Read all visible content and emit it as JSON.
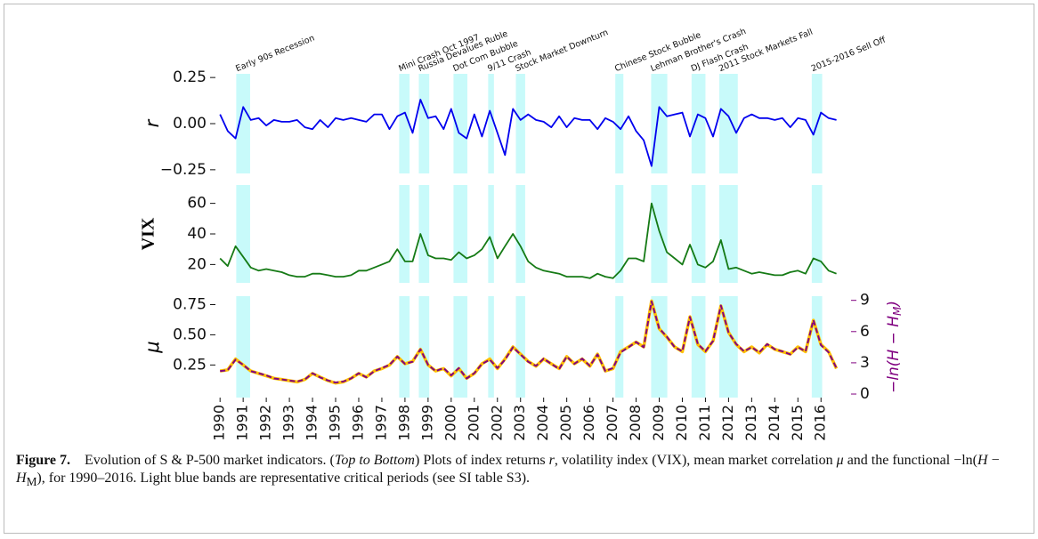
{
  "chart_data": {
    "type": "line",
    "xlim": [
      1989.8,
      2017.3
    ],
    "xticks": [
      1990,
      1991,
      1992,
      1993,
      1994,
      1995,
      1996,
      1997,
      1998,
      1999,
      2000,
      2001,
      2002,
      2003,
      2004,
      2005,
      2006,
      2007,
      2008,
      2009,
      2010,
      2011,
      2012,
      2013,
      2014,
      2015,
      2016
    ],
    "band_color": "#c8fafa",
    "bands": [
      {
        "start": 1990.7,
        "end": 1991.3,
        "label": "Early 90s Recession"
      },
      {
        "start": 1997.75,
        "end": 1998.2,
        "label": "Mini Crash Oct 1997"
      },
      {
        "start": 1998.6,
        "end": 1999.05,
        "label": "Russia Devalues Ruble"
      },
      {
        "start": 2000.1,
        "end": 2000.7,
        "label": "Dot Com Bubble"
      },
      {
        "start": 2001.6,
        "end": 2001.85,
        "label": "9/11 Crash"
      },
      {
        "start": 2002.8,
        "end": 2003.2,
        "label": "Stock Market Downturn"
      },
      {
        "start": 2007.1,
        "end": 2007.45,
        "label": "Chinese Stock Bubble"
      },
      {
        "start": 2008.65,
        "end": 2009.35,
        "label": "Lehman Brother's Crash"
      },
      {
        "start": 2010.4,
        "end": 2011.0,
        "label": "DJ Flash Crash"
      },
      {
        "start": 2011.6,
        "end": 2012.4,
        "label": "2011 Stock Markets Fall"
      },
      {
        "start": 2015.6,
        "end": 2016.05,
        "label": "2015-2016 Sell Off"
      }
    ],
    "x": [
      1990,
      1990.33,
      1990.67,
      1991,
      1991.33,
      1991.67,
      1992,
      1992.33,
      1992.67,
      1993,
      1993.33,
      1993.67,
      1994,
      1994.33,
      1994.67,
      1995,
      1995.33,
      1995.67,
      1996,
      1996.33,
      1996.67,
      1997,
      1997.33,
      1997.67,
      1998,
      1998.33,
      1998.67,
      1999,
      1999.33,
      1999.67,
      2000,
      2000.33,
      2000.67,
      2001,
      2001.33,
      2001.67,
      2002,
      2002.33,
      2002.67,
      2003,
      2003.33,
      2003.67,
      2004,
      2004.33,
      2004.67,
      2005,
      2005.33,
      2005.67,
      2006,
      2006.33,
      2006.67,
      2007,
      2007.33,
      2007.67,
      2008,
      2008.33,
      2008.67,
      2009,
      2009.33,
      2009.67,
      2010,
      2010.33,
      2010.67,
      2011,
      2011.33,
      2011.67,
      2012,
      2012.33,
      2012.67,
      2013,
      2013.33,
      2013.67,
      2014,
      2014.33,
      2014.67,
      2015,
      2015.33,
      2015.67,
      2016,
      2016.33,
      2016.67
    ],
    "panels": [
      {
        "ylabel": "r",
        "ylim": [
          -0.27,
          0.27
        ],
        "yticks": [
          {
            "value": -0.25,
            "label": "−0.25"
          },
          {
            "value": 0,
            "label": "0.00"
          },
          0.25
        ],
        "series": [
          {
            "name": "r",
            "color": "#0000ee",
            "values": [
              0.05,
              -0.04,
              -0.08,
              0.09,
              0.02,
              0.03,
              -0.01,
              0.02,
              0.01,
              0.01,
              0.02,
              -0.02,
              -0.03,
              0.02,
              -0.02,
              0.03,
              0.02,
              0.03,
              0.02,
              0.01,
              0.05,
              0.05,
              -0.03,
              0.04,
              0.06,
              -0.05,
              0.13,
              0.03,
              0.04,
              -0.03,
              0.08,
              -0.05,
              -0.08,
              0.05,
              -0.07,
              0.07,
              -0.05,
              -0.17,
              0.08,
              0.02,
              0.05,
              0.02,
              0.01,
              -0.02,
              0.04,
              -0.02,
              0.03,
              0.02,
              0.02,
              -0.03,
              0.03,
              0.01,
              -0.03,
              0.04,
              -0.04,
              -0.09,
              -0.23,
              0.09,
              0.04,
              0.05,
              0.06,
              -0.07,
              0.05,
              0.03,
              -0.07,
              0.08,
              0.04,
              -0.05,
              0.03,
              0.05,
              0.03,
              0.03,
              0.02,
              0.03,
              -0.02,
              0.03,
              0.02,
              -0.06,
              0.06,
              0.03,
              0.02
            ]
          }
        ]
      },
      {
        "ylabel": "VIX",
        "ylim": [
          8,
          72
        ],
        "yticks": [
          20,
          40,
          60
        ],
        "series": [
          {
            "name": "VIX",
            "color": "#157a15",
            "values": [
              24,
              19,
              32,
              25,
              18,
              16,
              17,
              16,
              15,
              13,
              12,
              12,
              14,
              14,
              13,
              12,
              12,
              13,
              16,
              16,
              18,
              20,
              22,
              30,
              22,
              22,
              40,
              26,
              24,
              24,
              23,
              28,
              24,
              26,
              30,
              38,
              24,
              32,
              40,
              32,
              22,
              18,
              16,
              15,
              14,
              12,
              12,
              12,
              11,
              14,
              12,
              11,
              16,
              24,
              24,
              22,
              60,
              42,
              28,
              24,
              20,
              33,
              20,
              18,
              22,
              36,
              17,
              18,
              16,
              14,
              15,
              14,
              13,
              13,
              15,
              16,
              14,
              24,
              22,
              16,
              14
            ]
          }
        ]
      },
      {
        "ylabel": "μ",
        "ylim": [
          -0.02,
          0.82
        ],
        "yticks": [
          0.25,
          {
            "value": 0.5,
            "label": "0.50"
          },
          0.75
        ],
        "y2label": [
          "−ln(H − H",
          "M",
          ")"
        ],
        "y2color": "#800080",
        "y2lim": [
          -0.34,
          9.4
        ],
        "y2ticks": [
          0,
          3,
          6,
          9
        ],
        "series": [
          {
            "name": "μ",
            "color": "#ffc000",
            "values": [
              0.2,
              0.21,
              0.3,
              0.25,
              0.2,
              0.18,
              0.16,
              0.14,
              0.13,
              0.12,
              0.11,
              0.13,
              0.18,
              0.15,
              0.12,
              0.1,
              0.11,
              0.14,
              0.18,
              0.15,
              0.2,
              0.22,
              0.25,
              0.32,
              0.26,
              0.28,
              0.38,
              0.25,
              0.2,
              0.22,
              0.16,
              0.22,
              0.14,
              0.18,
              0.26,
              0.3,
              0.22,
              0.3,
              0.4,
              0.34,
              0.28,
              0.24,
              0.3,
              0.26,
              0.22,
              0.32,
              0.26,
              0.3,
              0.24,
              0.34,
              0.2,
              0.22,
              0.36,
              0.4,
              0.44,
              0.4,
              0.78,
              0.55,
              0.48,
              0.4,
              0.36,
              0.65,
              0.42,
              0.36,
              0.45,
              0.74,
              0.52,
              0.42,
              0.36,
              0.4,
              0.35,
              0.42,
              0.38,
              0.36,
              0.34,
              0.4,
              0.36,
              0.62,
              0.42,
              0.36,
              0.22
            ]
          },
          {
            "name": "−ln(H − H_M)",
            "color": "#800080",
            "axis": "y2",
            "dashed": true,
            "values": [
              2.2,
              2.3,
              3.3,
              2.8,
              2.2,
              2.0,
              1.8,
              1.5,
              1.4,
              1.3,
              1.2,
              1.4,
              2.0,
              1.6,
              1.3,
              1.1,
              1.2,
              1.5,
              2.0,
              1.6,
              2.2,
              2.5,
              2.8,
              3.6,
              2.9,
              3.1,
              4.3,
              2.8,
              2.2,
              2.5,
              1.8,
              2.5,
              1.5,
              2.0,
              2.9,
              3.3,
              2.5,
              3.3,
              4.5,
              3.8,
              3.1,
              2.7,
              3.4,
              2.9,
              2.4,
              3.6,
              2.9,
              3.4,
              2.7,
              3.8,
              2.2,
              2.5,
              4.0,
              4.5,
              5.0,
              4.5,
              8.9,
              6.3,
              5.5,
              4.5,
              4.1,
              7.4,
              4.8,
              4.1,
              5.1,
              8.5,
              5.9,
              4.8,
              4.1,
              4.5,
              4.0,
              4.8,
              4.3,
              4.1,
              3.8,
              4.5,
              4.1,
              7.1,
              4.7,
              4.0,
              2.5
            ]
          }
        ]
      }
    ]
  },
  "caption": {
    "label": "Figure 7.",
    "runs": [
      {
        "text": "Evolution of S & P-500 market indicators. ("
      },
      {
        "text": "Top to Bottom",
        "italic": true
      },
      {
        "text": ") Plots of index returns "
      },
      {
        "text": "r",
        "italic": true
      },
      {
        "text": ", volatility index (VIX), mean market correlation "
      },
      {
        "text": "μ",
        "italic": true
      },
      {
        "text": " and the functional −ln("
      },
      {
        "text": "H",
        "italic": true
      },
      {
        "text": " − "
      },
      {
        "text": "H",
        "italic": true
      },
      {
        "text": "M",
        "sub": true
      },
      {
        "text": "), for 1990–2016. Light blue bands are representative critical periods (see SI table S3)."
      }
    ]
  }
}
